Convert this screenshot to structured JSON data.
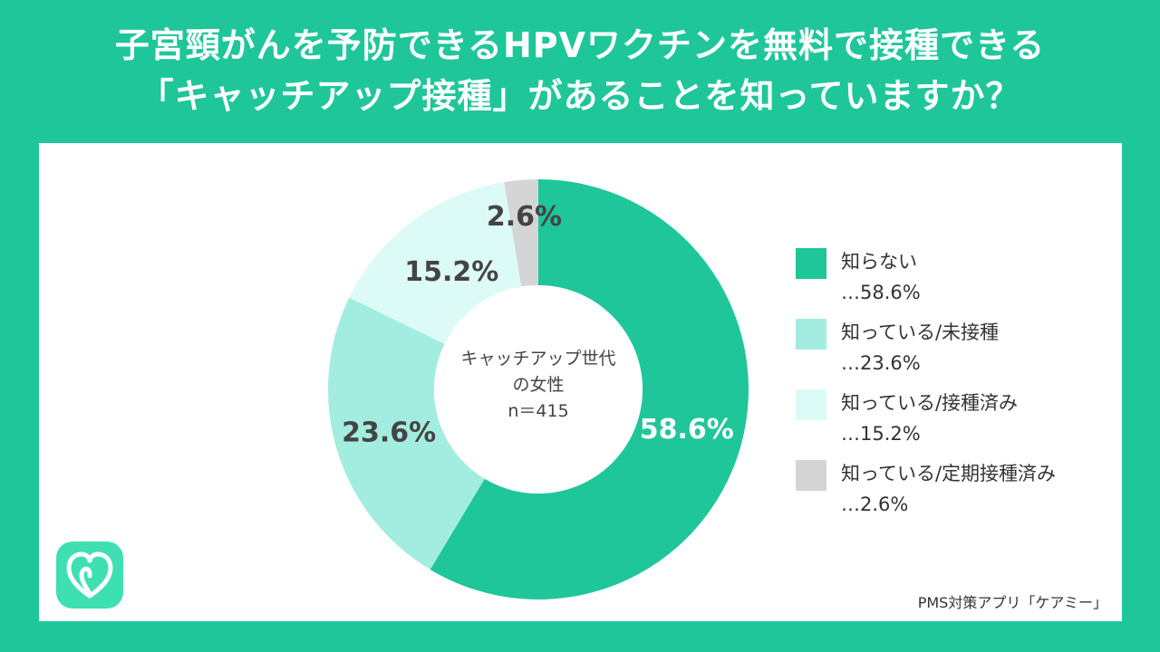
{
  "title": {
    "line1": "子宮頸がんを予防できるHPVワクチンを無料で接種できる",
    "line2": "「キャッチアップ接種」があることを知っていますか？"
  },
  "center": {
    "line1": "キャッチアップ世代",
    "line2": "の女性",
    "line3": "n＝415"
  },
  "chart_data": {
    "type": "pie",
    "title": "子宮頸がんを予防できるHPVワクチンを無料で接種できる「キャッチアップ接種」があることを知っていますか？",
    "categories": [
      "知らない",
      "知っている/未接種",
      "知っている/接種済み",
      "知っている/定期接種済み"
    ],
    "values": [
      58.6,
      23.6,
      15.2,
      2.6
    ],
    "value_labels": [
      "58.6%",
      "23.6%",
      "15.2%",
      "2.6%"
    ],
    "colors": [
      "#1fc699",
      "#a3ede0",
      "#dcfbf6",
      "#d5d5d5"
    ],
    "label_colors": [
      "#ffffff",
      "#444444",
      "#444444",
      "#444444"
    ],
    "legend_placement": "right",
    "donut": true
  },
  "legend": [
    {
      "label": "知らない",
      "value": "…58.6%",
      "color": "#1fc699"
    },
    {
      "label": "知っている/未接種",
      "value": "…23.6%",
      "color": "#a3ede0"
    },
    {
      "label": "知っている/接種済み",
      "value": "…15.2%",
      "color": "#dcfbf6"
    },
    {
      "label": "知っている/定期接種済み",
      "value": "…2.6%",
      "color": "#d5d5d5"
    }
  ],
  "logo": {
    "icon": "heart-leaf-icon",
    "color": "#3ee0b2"
  },
  "credit": "PMS対策アプリ「ケアミー」"
}
